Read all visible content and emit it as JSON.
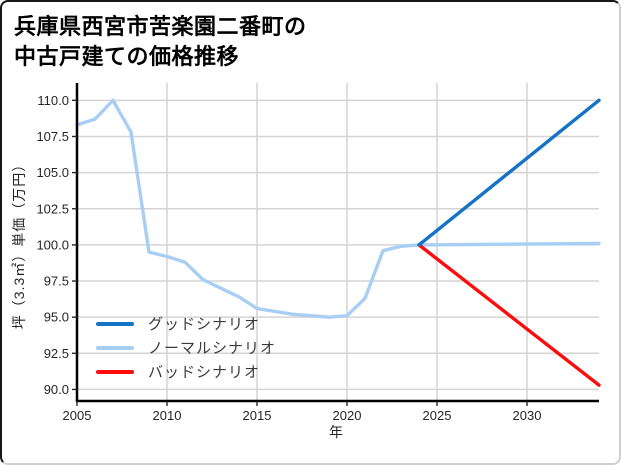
{
  "chart_data": {
    "type": "line",
    "title": "兵庫県西宮市苦楽園二番町の\n中古戸建ての価格推移",
    "xlabel": "年",
    "ylabel": "坪（3.3㎡）単価（万円）",
    "xlim": [
      2005,
      2034
    ],
    "ylim": [
      89.2,
      111.2
    ],
    "x_ticks": [
      2005,
      2010,
      2015,
      2020,
      2025,
      2030
    ],
    "y_ticks": [
      90.0,
      92.5,
      95.0,
      97.5,
      100.0,
      102.5,
      105.0,
      107.5,
      110.0
    ],
    "grid": true,
    "legend_position": "lower-left",
    "colors": {
      "grid": "#d4d4d4",
      "spine": "#000000",
      "tick_label": "#262626",
      "good": "#1573c6",
      "normal": "#a9cef4",
      "bad": "#ff0b0b"
    },
    "series": [
      {
        "name": "グッドシナリオ",
        "key": "good",
        "color": "#1573c6",
        "x": [
          2024,
          2034
        ],
        "values": [
          100.0,
          110.0
        ]
      },
      {
        "name": "ノーマルシナリオ",
        "key": "normal",
        "color": "#a9cef4",
        "x": [
          2005,
          2006,
          2007,
          2008,
          2009,
          2010,
          2011,
          2012,
          2013,
          2014,
          2015,
          2016,
          2017,
          2018,
          2019,
          2020,
          2021,
          2022,
          2023,
          2024,
          2034
        ],
        "values": [
          108.3,
          108.7,
          110.0,
          107.8,
          99.5,
          99.2,
          98.8,
          97.6,
          97.0,
          96.4,
          95.6,
          95.4,
          95.2,
          95.1,
          95.0,
          95.1,
          96.3,
          99.6,
          99.9,
          100.0,
          100.1
        ]
      },
      {
        "name": "バッドシナリオ",
        "key": "bad",
        "color": "#ff0b0b",
        "x": [
          2024,
          2034
        ],
        "values": [
          100.0,
          90.3
        ]
      }
    ]
  }
}
